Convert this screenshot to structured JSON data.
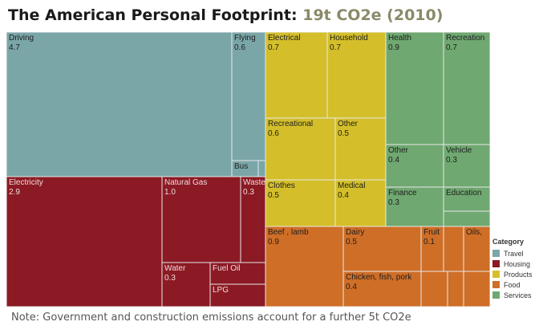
{
  "title": {
    "main": "The American Personal Footprint:",
    "highlight": "19t CO2e (2010)"
  },
  "note": "Note:  Government and construction emissions account for a further 5t CO2e",
  "legend": {
    "title": "Category",
    "items": [
      {
        "label": "Travel",
        "color": "#7aa6a8"
      },
      {
        "label": "Housing",
        "color": "#8b1a24"
      },
      {
        "label": "Products",
        "color": "#d4bf2a"
      },
      {
        "label": "Food",
        "color": "#cf6e27"
      },
      {
        "label": "Services",
        "color": "#6fa870"
      }
    ]
  },
  "chart_data": {
    "type": "treemap",
    "title": "The American Personal Footprint: 19t CO2e (2010)",
    "units": "t CO2e",
    "legend_position": "bottom-right",
    "categories": [
      {
        "name": "Travel",
        "color": "#7aa6a8",
        "items": [
          {
            "label": "Driving",
            "value": "4.7"
          },
          {
            "label": "Flying",
            "value": "0.6"
          },
          {
            "label": "Bus",
            "value": ""
          },
          {
            "label": "",
            "value": ""
          }
        ]
      },
      {
        "name": "Housing",
        "color": "#8b1a24",
        "items": [
          {
            "label": "Electricity",
            "value": "2.9"
          },
          {
            "label": "Natural Gas",
            "value": "1.0"
          },
          {
            "label": "Waste",
            "value": "0.3"
          },
          {
            "label": "Water",
            "value": "0.3"
          },
          {
            "label": "Fuel Oil",
            "value": ""
          },
          {
            "label": "LPG",
            "value": ""
          }
        ]
      },
      {
        "name": "Products",
        "color": "#d4bf2a",
        "items": [
          {
            "label": "Electrical",
            "value": "0.7"
          },
          {
            "label": "Household",
            "value": "0.7"
          },
          {
            "label": "Recreational",
            "value": "0.6"
          },
          {
            "label": "Other",
            "value": "0.5"
          },
          {
            "label": "Clothes",
            "value": "0.5"
          },
          {
            "label": "Medical",
            "value": "0.4"
          }
        ]
      },
      {
        "name": "Food",
        "color": "#cf6e27",
        "items": [
          {
            "label": "Beef , lamb",
            "value": "0.9"
          },
          {
            "label": "Dairy",
            "value": "0.5"
          },
          {
            "label": "Fruit",
            "value": "0.1"
          },
          {
            "label": "Oils,",
            "value": ""
          },
          {
            "label": "Chicken, fish, pork",
            "value": "0.4"
          },
          {
            "label": "",
            "value": ""
          },
          {
            "label": "",
            "value": ""
          },
          {
            "label": "",
            "value": ""
          },
          {
            "label": "",
            "value": ""
          },
          {
            "label": "",
            "value": ""
          }
        ]
      },
      {
        "name": "Services",
        "color": "#6fa870",
        "items": [
          {
            "label": "Health",
            "value": "0.9"
          },
          {
            "label": "Recreation",
            "value": "0.7"
          },
          {
            "label": "Other",
            "value": "0.4"
          },
          {
            "label": "Vehicle",
            "value": "0.3"
          },
          {
            "label": "Finance",
            "value": "0.3"
          },
          {
            "label": "Education",
            "value": ""
          },
          {
            "label": "",
            "value": ""
          }
        ]
      }
    ]
  }
}
